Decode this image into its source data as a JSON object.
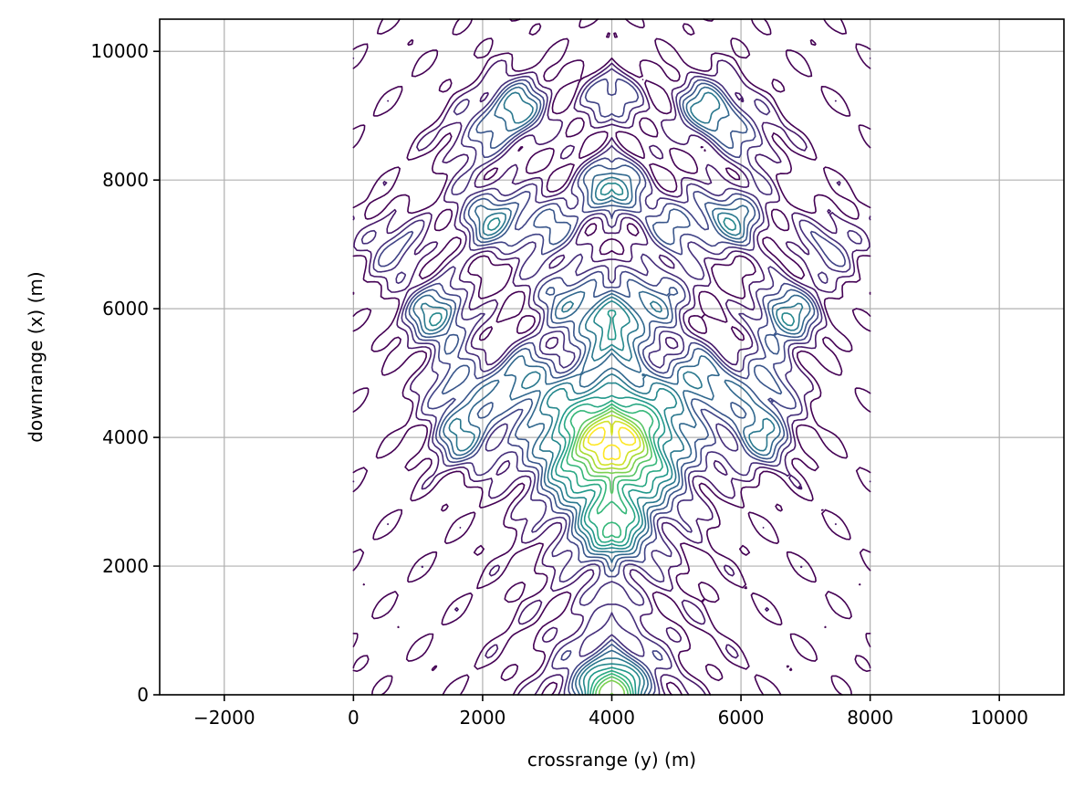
{
  "chart_data": {
    "type": "contour",
    "title": "",
    "xlabel": "crossrange (y) (m)",
    "ylabel": "downrange (x) (m)",
    "xlim": [
      -3000,
      11000
    ],
    "ylim": [
      0,
      10500
    ],
    "xticks": [
      -2000,
      0,
      2000,
      4000,
      6000,
      8000,
      10000
    ],
    "xtick_labels": [
      "−2000",
      "0",
      "2000",
      "4000",
      "6000",
      "8000",
      "10000"
    ],
    "yticks": [
      0,
      2000,
      4000,
      6000,
      8000,
      10000
    ],
    "ytick_labels": [
      "0",
      "2000",
      "4000",
      "6000",
      "8000",
      "10000"
    ],
    "grid": true,
    "colormap": "viridis",
    "data_extent": {
      "x": [
        0,
        8000
      ],
      "y": [
        0,
        10500
      ]
    },
    "symmetry_axis_x": 4000,
    "peaks": [
      {
        "x": 4000,
        "y": 3900,
        "level": 1.0
      },
      {
        "x": 4000,
        "y": 100,
        "level": 0.72
      },
      {
        "x": 4000,
        "y": 5800,
        "level": 0.55
      },
      {
        "x": 4000,
        "y": 7900,
        "level": 0.48
      },
      {
        "x": 4000,
        "y": 2500,
        "level": 0.45
      },
      {
        "x": 1300,
        "y": 5900,
        "level": 0.52
      },
      {
        "x": 6700,
        "y": 5900,
        "level": 0.52
      },
      {
        "x": 2500,
        "y": 9100,
        "level": 0.5
      },
      {
        "x": 5500,
        "y": 9100,
        "level": 0.5
      },
      {
        "x": 2100,
        "y": 7400,
        "level": 0.45
      },
      {
        "x": 5900,
        "y": 7400,
        "level": 0.45
      },
      {
        "x": 1700,
        "y": 4000,
        "level": 0.42
      },
      {
        "x": 6300,
        "y": 4000,
        "level": 0.42
      },
      {
        "x": 2600,
        "y": 4900,
        "level": 0.38
      },
      {
        "x": 5400,
        "y": 4900,
        "level": 0.38
      },
      {
        "x": 1600,
        "y": 4800,
        "level": 0.32
      },
      {
        "x": 6400,
        "y": 4800,
        "level": 0.32
      },
      {
        "x": 3000,
        "y": 7300,
        "level": 0.3
      },
      {
        "x": 5000,
        "y": 7300,
        "level": 0.3
      },
      {
        "x": 3200,
        "y": 6200,
        "level": 0.3
      },
      {
        "x": 4800,
        "y": 6200,
        "level": 0.3
      },
      {
        "x": 4000,
        "y": 9300,
        "level": 0.3
      },
      {
        "x": 600,
        "y": 7000,
        "level": 0.28
      },
      {
        "x": 7400,
        "y": 7000,
        "level": 0.28
      },
      {
        "x": 1800,
        "y": 8600,
        "level": 0.22
      },
      {
        "x": 6200,
        "y": 8600,
        "level": 0.22
      }
    ],
    "colors": {
      "frame": "#000000",
      "grid": "#b0b0b0",
      "low": "#440154",
      "high": "#fde725"
    }
  }
}
